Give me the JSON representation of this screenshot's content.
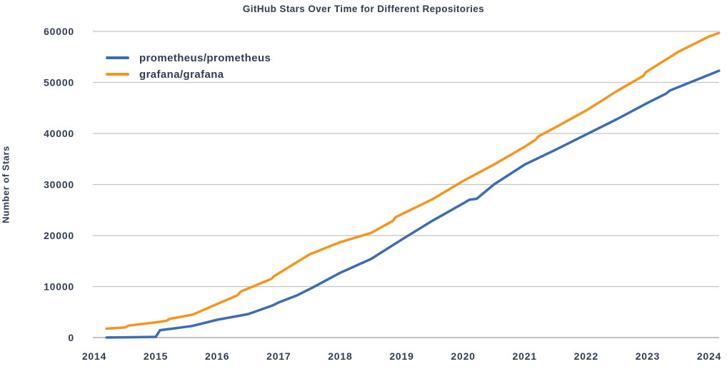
{
  "chart_data": {
    "type": "line",
    "title": "GitHub Stars Over Time for Different Repositories",
    "ylabel": "Number of Stars",
    "xlabel": "",
    "x_ticks": [
      2014,
      2015,
      2016,
      2017,
      2018,
      2019,
      2020,
      2021,
      2022,
      2023,
      2024
    ],
    "y_ticks": [
      0,
      10000,
      20000,
      30000,
      40000,
      50000,
      60000
    ],
    "xlim": [
      2013.98,
      2024.16
    ],
    "ylim": [
      0,
      60000
    ],
    "grid": "horizontal-only",
    "legend_position": "upper-left-inside",
    "colors": {
      "text": "#2E3D55",
      "gridline": "#C3C3C3",
      "axis_line": "#9E9E9E",
      "background": "#FFFFFF"
    },
    "series": [
      {
        "name": "prometheus/prometheus",
        "color": "#3C6DB4",
        "x": [
          2014.2,
          2014.6,
          2015.0,
          2015.07,
          2015.3,
          2015.6,
          2016.0,
          2016.5,
          2016.9,
          2017.0,
          2017.3,
          2017.55,
          2018.0,
          2018.5,
          2019.0,
          2019.5,
          2020.0,
          2020.1,
          2020.22,
          2020.5,
          2021.0,
          2021.5,
          2022.0,
          2022.5,
          2023.0,
          2023.3,
          2023.36,
          2024.0,
          2024.16
        ],
        "y": [
          20,
          70,
          140,
          1450,
          1800,
          2300,
          3500,
          4600,
          6300,
          6900,
          8300,
          9800,
          12700,
          15400,
          19200,
          22900,
          26300,
          27000,
          27200,
          30000,
          33900,
          36800,
          39800,
          42800,
          46000,
          47800,
          48400,
          51500,
          52300
        ]
      },
      {
        "name": "grafana/grafana",
        "color": "#F7941E",
        "x": [
          2014.2,
          2014.5,
          2014.56,
          2015.0,
          2015.18,
          2015.22,
          2015.6,
          2016.0,
          2016.33,
          2016.38,
          2016.88,
          2016.92,
          2017.5,
          2018.0,
          2018.5,
          2018.86,
          2018.9,
          2019.5,
          2020.0,
          2020.5,
          2021.0,
          2021.18,
          2021.22,
          2021.5,
          2022.0,
          2022.5,
          2022.93,
          2022.97,
          2023.5,
          2024.0,
          2024.16
        ],
        "y": [
          1750,
          2000,
          2350,
          3000,
          3300,
          3650,
          4500,
          6600,
          8300,
          9000,
          11500,
          12000,
          16300,
          18700,
          20500,
          22900,
          23600,
          27100,
          30700,
          33900,
          37400,
          38800,
          39400,
          41200,
          44500,
          48300,
          51300,
          52000,
          56000,
          59000,
          59700
        ]
      }
    ]
  }
}
